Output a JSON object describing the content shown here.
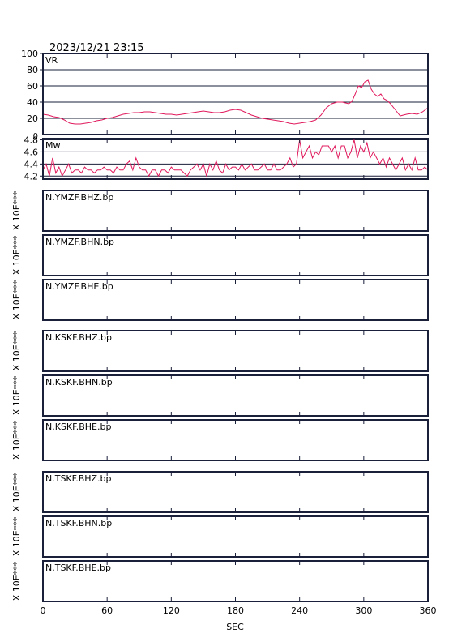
{
  "header": {
    "timestamp": "2023/12/21 23:15"
  },
  "x_axis": {
    "label": "SEC",
    "ticks": [
      0,
      60,
      120,
      180,
      240,
      300,
      360
    ],
    "range": [
      0,
      360
    ]
  },
  "vr_panel": {
    "label": "VR",
    "ticks": [
      20,
      40,
      60,
      80,
      100
    ],
    "extra_tick": "0"
  },
  "mw_panel": {
    "label": "Mw",
    "ticks": [
      "4.2",
      "4.4",
      "4.6",
      "4.8"
    ]
  },
  "y_unit_label": "X 10E***",
  "colors": {
    "trace": "#e0185c",
    "frame": "#1a1f3a"
  },
  "stations": [
    {
      "label": "N.YMZF.BHZ.bp"
    },
    {
      "label": "N.YMZF.BHN.bp"
    },
    {
      "label": "N.YMZF.BHE.bp"
    },
    {
      "label": "N.KSKF.BHZ.bp"
    },
    {
      "label": "N.KSKF.BHN.bp"
    },
    {
      "label": "N.KSKF.BHE.bp"
    },
    {
      "label": "N.TSKF.BHZ.bp"
    },
    {
      "label": "N.TSKF.BHN.bp"
    },
    {
      "label": "N.TSKF.BHE.bp"
    }
  ],
  "chart_data": [
    {
      "type": "line",
      "title": "VR",
      "xlabel": "SEC",
      "ylabel": "",
      "xlim": [
        0,
        360
      ],
      "ylim": [
        0,
        100
      ],
      "grid": true,
      "series": [
        {
          "x": [
            0,
            5,
            10,
            15,
            20,
            25,
            30,
            35,
            40,
            45,
            50,
            55,
            60,
            65,
            70,
            75,
            80,
            85,
            90,
            95,
            100,
            105,
            110,
            115,
            120,
            125,
            130,
            135,
            140,
            145,
            150,
            155,
            160,
            165,
            170,
            175,
            180,
            185,
            190,
            195,
            200,
            205,
            210,
            215,
            220,
            225,
            230,
            235,
            240,
            245,
            250,
            255,
            260,
            265,
            270,
            275,
            280,
            283,
            286,
            289,
            292,
            295,
            298,
            301,
            304,
            307,
            310,
            313,
            316,
            319,
            322,
            325,
            328,
            331,
            334,
            337,
            340,
            345,
            350,
            355,
            360
          ],
          "y": [
            25,
            24,
            22,
            21,
            18,
            14,
            13,
            13,
            14,
            15,
            17,
            18,
            20,
            21,
            23,
            25,
            26,
            27,
            27,
            28,
            28,
            27,
            26,
            25,
            25,
            24,
            25,
            26,
            27,
            28,
            29,
            28,
            27,
            27,
            28,
            30,
            31,
            30,
            27,
            24,
            22,
            20,
            19,
            18,
            17,
            16,
            14,
            13,
            14,
            15,
            16,
            18,
            24,
            33,
            38,
            40,
            40,
            39,
            38,
            41,
            50,
            60,
            58,
            65,
            67,
            56,
            50,
            47,
            50,
            44,
            42,
            38,
            33,
            28,
            23,
            24,
            25,
            26,
            25,
            28,
            33
          ]
        }
      ]
    },
    {
      "type": "line",
      "title": "Mw",
      "xlabel": "SEC",
      "ylabel": "",
      "xlim": [
        0,
        360
      ],
      "ylim": [
        4.15,
        4.82
      ],
      "grid": true,
      "series": [
        {
          "x": [
            0,
            3,
            6,
            9,
            12,
            15,
            18,
            21,
            24,
            27,
            30,
            33,
            36,
            39,
            42,
            45,
            48,
            51,
            54,
            57,
            60,
            63,
            66,
            69,
            72,
            75,
            78,
            81,
            84,
            87,
            90,
            93,
            96,
            99,
            102,
            105,
            108,
            111,
            114,
            117,
            120,
            123,
            126,
            129,
            132,
            135,
            138,
            141,
            144,
            147,
            150,
            153,
            156,
            159,
            162,
            165,
            168,
            171,
            174,
            177,
            180,
            183,
            186,
            189,
            192,
            195,
            198,
            201,
            204,
            207,
            210,
            213,
            216,
            219,
            222,
            225,
            228,
            231,
            234,
            237,
            240,
            243,
            246,
            249,
            252,
            255,
            258,
            261,
            264,
            267,
            270,
            273,
            276,
            279,
            282,
            285,
            288,
            291,
            294,
            297,
            300,
            303,
            306,
            309,
            312,
            315,
            318,
            321,
            324,
            327,
            330,
            333,
            336,
            339,
            342,
            345,
            348,
            351,
            354,
            357,
            360
          ],
          "y": [
            4.3,
            4.4,
            4.2,
            4.5,
            4.25,
            4.35,
            4.2,
            4.3,
            4.4,
            4.25,
            4.3,
            4.3,
            4.25,
            4.35,
            4.3,
            4.3,
            4.25,
            4.3,
            4.3,
            4.35,
            4.3,
            4.3,
            4.25,
            4.35,
            4.3,
            4.3,
            4.4,
            4.45,
            4.3,
            4.5,
            4.35,
            4.3,
            4.3,
            4.2,
            4.3,
            4.3,
            4.2,
            4.3,
            4.3,
            4.25,
            4.35,
            4.3,
            4.3,
            4.3,
            4.25,
            4.2,
            4.3,
            4.35,
            4.4,
            4.3,
            4.4,
            4.2,
            4.4,
            4.3,
            4.45,
            4.3,
            4.25,
            4.4,
            4.3,
            4.35,
            4.35,
            4.3,
            4.4,
            4.3,
            4.35,
            4.4,
            4.3,
            4.3,
            4.35,
            4.4,
            4.3,
            4.3,
            4.4,
            4.3,
            4.3,
            4.35,
            4.4,
            4.5,
            4.35,
            4.4,
            4.8,
            4.5,
            4.6,
            4.7,
            4.5,
            4.6,
            4.55,
            4.7,
            4.7,
            4.7,
            4.6,
            4.7,
            4.5,
            4.7,
            4.7,
            4.5,
            4.6,
            4.8,
            4.5,
            4.7,
            4.6,
            4.75,
            4.5,
            4.6,
            4.5,
            4.4,
            4.5,
            4.35,
            4.5,
            4.4,
            4.3,
            4.4,
            4.5,
            4.3,
            4.4,
            4.3,
            4.5,
            4.3,
            4.3,
            4.35,
            4.3
          ]
        }
      ]
    }
  ]
}
